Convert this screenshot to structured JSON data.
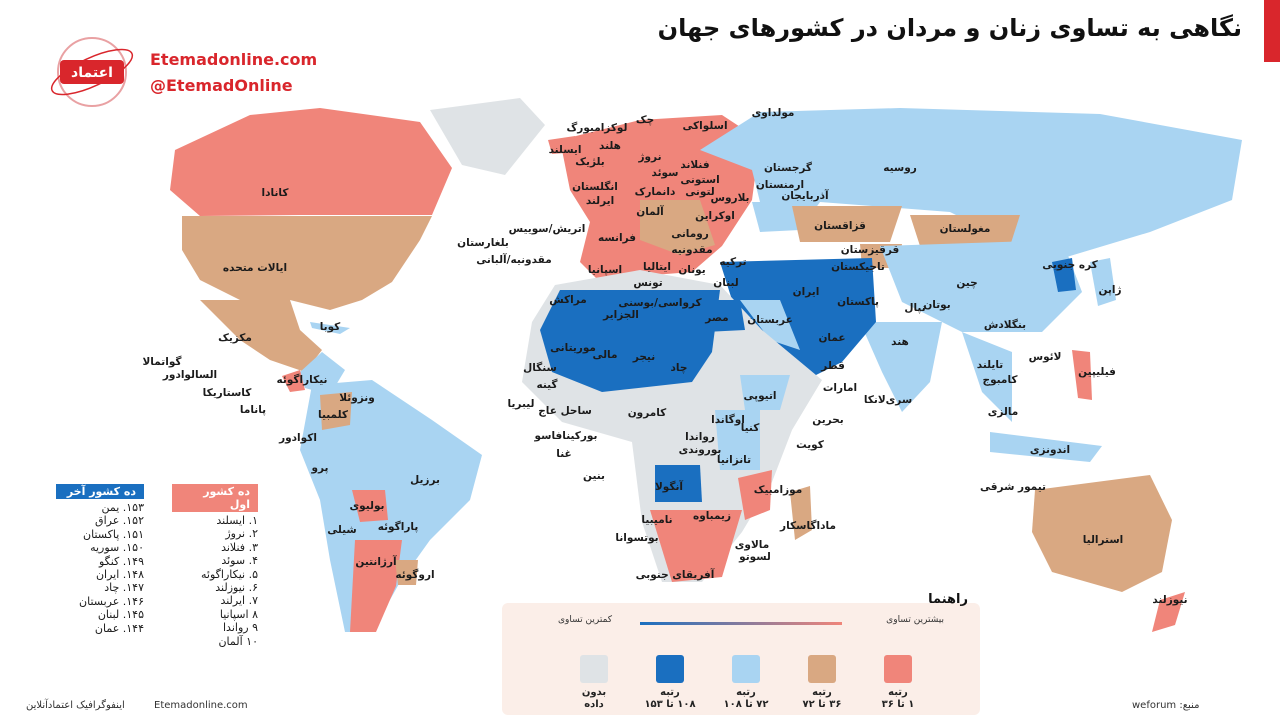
{
  "header": {
    "title": "نگاهی به تساوی زنان و مردان در کشورهای جهان",
    "site": "Etemadonline.com",
    "handle": "@EtemadOnline"
  },
  "map_labels": [
    "کانادا",
    "ایالات متحده",
    "مکزیک",
    "کوبا",
    "گواتمالا",
    "السالوادور",
    "نیکاراگوئه",
    "کاستاریکا",
    "پاناما",
    "ونزوئلا",
    "کلمبیا",
    "اکوادور",
    "پرو",
    "برزیل",
    "بولیوی",
    "شیلی",
    "پاراگوئه",
    "آرژانتین",
    "اروگوئه",
    "لوکزامبورگ",
    "چک",
    "اسلواکی",
    "مولداوی",
    "ایسلند",
    "هلند",
    "بلژیک",
    "نروژ",
    "سوئد",
    "فنلاند",
    "استونی",
    "لتونی",
    "انگلستان",
    "ایرلند",
    "دانمارک",
    "بلاروس",
    "آلمان",
    "اوکراین",
    "اتریش/سوییس",
    "فرانسه",
    "رومانی",
    "بلغارستان",
    "مقدونیه",
    "مقدونیه/آلبانی",
    "اسپانیا",
    "ایتالیا",
    "یونان",
    "ترکیه",
    "گرجستان",
    "ارمنستان",
    "آذربایجان",
    "روسیه",
    "قزاقستان",
    "مغولستان",
    "قرقیزستان",
    "تاجیکستان",
    "کره جنوبی",
    "ژاپن",
    "چین",
    "مراکش",
    "تونس",
    "لبنان",
    "کرواسی/بوسنی",
    "الجزایر",
    "مصر",
    "ایران",
    "پاکستان",
    "بوتان",
    "نپال",
    "بنگلادش",
    "عربستان",
    "عمان",
    "هند",
    "قطر",
    "لائوس",
    "تایلند",
    "فیلیپین",
    "موریتانی",
    "مالی",
    "نیجر",
    "چاد",
    "سنگال",
    "گینه",
    "امارات",
    "کامبوج",
    "سری‌لانکا",
    "اتیوپی",
    "لیبریا",
    "ساحل عاج",
    "کامرون",
    "اوگاندا",
    "مالزی",
    "بحرین",
    "کنیا",
    "رواندا",
    "بوروندی",
    "بورکینافاسو",
    "غنا",
    "کویت",
    "اندونزی",
    "تانزانیا",
    "بنین",
    "آنگولا",
    "تیمور شرقی",
    "موزامبیک",
    "زیمباوه",
    "ماداگاسکار",
    "نامیبیا",
    "بوتسوانا",
    "مالاوی",
    "لسوتو",
    "آفریقای جنوبی",
    "استرالیا",
    "نیوزلند"
  ],
  "top_ten": {
    "heading": "ده کشور اول",
    "color": "#f0857a",
    "items": [
      "۱. ایسلند",
      "۲. نروژ",
      "۳. فنلاند",
      "۴. سوئد",
      "۵. نیکاراگوئه",
      "۶. نیوزلند",
      "۷. ایرلند",
      "۸ اسپانیا",
      "۹ رواندا",
      "۱۰ آلمان"
    ]
  },
  "bottom_ten": {
    "heading": "ده کشور آخر",
    "color": "#1a6fc0",
    "items": [
      "۱۵۳. یمن",
      "۱۵۲. عراق",
      "۱۵۱. پاکستان",
      "۱۵۰. سوریه",
      "۱۴۹. کنگو",
      "۱۴۸. ایران",
      "۱۴۷. چاد",
      "۱۴۶. عربستان",
      "۱۴۵. لبنان",
      "۱۴۴. عمان"
    ]
  },
  "legend": {
    "title": "راهنما",
    "most": "بیشترین تساوی",
    "least": "کمترین تساوی",
    "items": [
      {
        "label": [
          "رتبه",
          "۱ تا ۳۶"
        ],
        "color": "#f0857a"
      },
      {
        "label": [
          "رتبه",
          "۳۶ تا ۷۲"
        ],
        "color": "#d9a882"
      },
      {
        "label": [
          "رتبه",
          "۷۲ تا ۱۰۸"
        ],
        "color": "#a9d4f2"
      },
      {
        "label": [
          "رتبه",
          "۱۰۸ تا ۱۵۳"
        ],
        "color": "#1a6fc0"
      },
      {
        "label": [
          "بدون",
          "داده"
        ],
        "color": "#dfe3e6"
      }
    ]
  },
  "footer": {
    "source": "منبع: weforum",
    "site": "Etemadonline.com",
    "credit": "اینفوگرافیک اعتمادآنلاین"
  }
}
